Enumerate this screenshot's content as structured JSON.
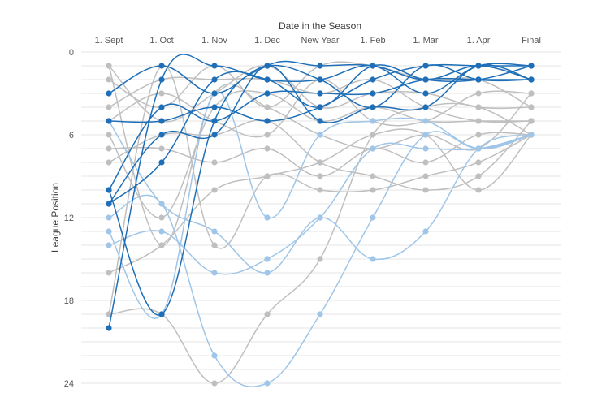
{
  "chart_data": {
    "type": "line",
    "title": "",
    "xlabel": "Date in the Season",
    "ylabel": "League Position",
    "categories": [
      "1. Sept",
      "1. Oct",
      "1. Nov",
      "1. Dec",
      "New Year",
      "1. Feb",
      "1. Mar",
      "1. Apr",
      "Final"
    ],
    "y_ticks": [
      0,
      6,
      12,
      18,
      24
    ],
    "ylim": [
      0,
      24
    ],
    "y_inverted": true,
    "grid": "horizontal",
    "legend": "none",
    "colors": {
      "dark": "#1f6fb8",
      "light": "#9fc5e8",
      "gray": "#bfbfbf"
    },
    "series": [
      {
        "tone": "gray",
        "values": [
          1,
          5,
          3,
          1,
          4,
          3,
          3,
          4,
          4
        ]
      },
      {
        "tone": "gray",
        "values": [
          2,
          4,
          1,
          4,
          1,
          1,
          2,
          2,
          4
        ]
      },
      {
        "tone": "gray",
        "values": [
          4,
          2,
          2,
          2,
          3,
          2,
          4,
          5,
          5
        ]
      },
      {
        "tone": "gray",
        "values": [
          5,
          3,
          5,
          6,
          2,
          5,
          5,
          3,
          3
        ]
      },
      {
        "tone": "gray",
        "values": [
          6,
          12,
          4,
          3,
          5,
          4,
          5,
          5,
          5
        ]
      },
      {
        "tone": "gray",
        "values": [
          7,
          7,
          8,
          7,
          9,
          7,
          8,
          6,
          6
        ]
      },
      {
        "tone": "gray",
        "values": [
          8,
          6,
          6,
          5,
          8,
          9,
          10,
          9,
          5
        ]
      },
      {
        "tone": "gray",
        "values": [
          16,
          14,
          10,
          9,
          8,
          6,
          6,
          10,
          6
        ]
      },
      {
        "tone": "gray",
        "values": [
          19,
          1,
          14,
          9,
          10,
          10,
          9,
          8,
          6
        ]
      },
      {
        "tone": "gray",
        "values": [
          19,
          19,
          24,
          19,
          15,
          6,
          4,
          4,
          6
        ]
      },
      {
        "tone": "gray",
        "values": [
          1,
          14,
          3,
          4,
          6,
          7,
          6,
          7,
          3
        ]
      },
      {
        "tone": "dark",
        "values": [
          20,
          2,
          1,
          2,
          2,
          1,
          3,
          1,
          1
        ]
      },
      {
        "tone": "dark",
        "values": [
          3,
          1,
          3,
          1,
          2,
          4,
          1,
          2,
          2
        ]
      },
      {
        "tone": "dark",
        "values": [
          5,
          5,
          4,
          5,
          4,
          2,
          1,
          1,
          1
        ]
      },
      {
        "tone": "dark",
        "values": [
          10,
          4,
          5,
          3,
          3,
          3,
          2,
          2,
          2
        ]
      },
      {
        "tone": "dark",
        "values": [
          11,
          6,
          6,
          1,
          5,
          4,
          4,
          1,
          2
        ]
      },
      {
        "tone": "dark",
        "values": [
          11,
          8,
          2,
          2,
          4,
          1,
          2,
          2,
          1
        ]
      },
      {
        "tone": "dark",
        "values": [
          10,
          19,
          5,
          1,
          1,
          1,
          2,
          1,
          2
        ]
      },
      {
        "tone": "light",
        "values": [
          5,
          11,
          13,
          16,
          12,
          15,
          13,
          7,
          6
        ]
      },
      {
        "tone": "light",
        "values": [
          12,
          11,
          22,
          24,
          19,
          12,
          6,
          7,
          6
        ]
      },
      {
        "tone": "light",
        "values": [
          14,
          13,
          16,
          15,
          12,
          7,
          7,
          7,
          6
        ]
      },
      {
        "tone": "light",
        "values": [
          13,
          19,
          3,
          12,
          6,
          5,
          5,
          7,
          6
        ]
      }
    ]
  }
}
